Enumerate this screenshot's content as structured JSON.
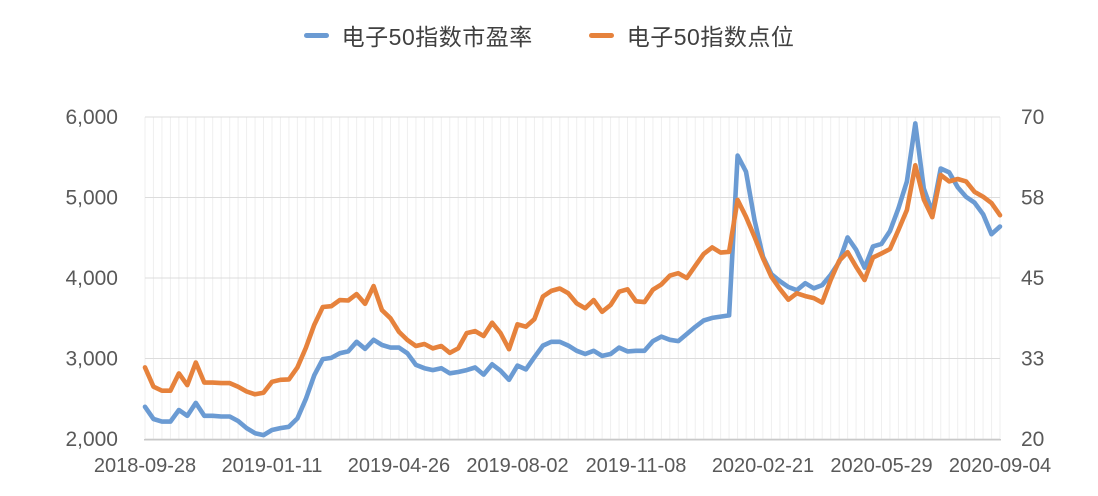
{
  "legend": {
    "items": [
      {
        "label": "电子50指数市盈率",
        "color": "#6B9BD3",
        "series": "pe"
      },
      {
        "label": "电子50指数点位",
        "color": "#E6823C",
        "series": "index"
      }
    ]
  },
  "colors": {
    "pe_line": "#6B9BD3",
    "index_line": "#E6823C",
    "axis_text": "#595959",
    "legend_text": "#404040",
    "h_gridline": "#DCDCDC",
    "v_gridline": "#EFEFEF",
    "axis_line": "#C8C8C8",
    "background": "#FFFFFF"
  },
  "chart_data": {
    "type": "line",
    "title": "",
    "legend_position": "top",
    "grid": true,
    "x_tick_labels": [
      "2018-09-28",
      "2019-01-11",
      "2019-04-26",
      "2019-08-02",
      "2019-11-08",
      "2020-02-21",
      "2020-05-29",
      "2020-09-04"
    ],
    "x_tick_indices": [
      0,
      15,
      30,
      44,
      58,
      73,
      87,
      101
    ],
    "y_left": {
      "label": "",
      "min": 2000,
      "max": 6000,
      "tick_labels": [
        "2,000",
        "3,000",
        "4,000",
        "5,000",
        "6,000"
      ],
      "tick_values": [
        2000,
        3000,
        4000,
        5000,
        6000
      ]
    },
    "y_right": {
      "label": "",
      "min": 20,
      "max": 70,
      "tick_labels": [
        "20",
        "33",
        "45",
        "58",
        "70"
      ],
      "tick_values": [
        20,
        32.5,
        45,
        57.5,
        70
      ]
    },
    "x": [
      "2018-09-28",
      "2018-10-05",
      "2018-10-12",
      "2018-10-19",
      "2018-10-26",
      "2018-11-02",
      "2018-11-09",
      "2018-11-16",
      "2018-11-23",
      "2018-11-30",
      "2018-12-07",
      "2018-12-14",
      "2018-12-21",
      "2018-12-28",
      "2019-01-04",
      "2019-01-11",
      "2019-01-18",
      "2019-01-25",
      "2019-02-01",
      "2019-02-08",
      "2019-02-15",
      "2019-02-22",
      "2019-03-01",
      "2019-03-08",
      "2019-03-15",
      "2019-03-22",
      "2019-03-29",
      "2019-04-05",
      "2019-04-12",
      "2019-04-19",
      "2019-04-26",
      "2019-05-03",
      "2019-05-10",
      "2019-05-17",
      "2019-05-24",
      "2019-05-31",
      "2019-06-07",
      "2019-06-14",
      "2019-06-21",
      "2019-06-28",
      "2019-07-05",
      "2019-07-12",
      "2019-07-19",
      "2019-07-26",
      "2019-08-02",
      "2019-08-09",
      "2019-08-16",
      "2019-08-23",
      "2019-08-30",
      "2019-09-06",
      "2019-09-13",
      "2019-09-20",
      "2019-09-27",
      "2019-10-04",
      "2019-10-11",
      "2019-10-18",
      "2019-10-25",
      "2019-11-01",
      "2019-11-08",
      "2019-11-15",
      "2019-11-22",
      "2019-11-29",
      "2019-12-06",
      "2019-12-13",
      "2019-12-20",
      "2019-12-27",
      "2020-01-03",
      "2020-01-10",
      "2020-01-17",
      "2020-01-24",
      "2020-01-31",
      "2020-02-07",
      "2020-02-14",
      "2020-02-21",
      "2020-02-28",
      "2020-03-06",
      "2020-03-13",
      "2020-03-20",
      "2020-03-27",
      "2020-04-03",
      "2020-04-10",
      "2020-04-17",
      "2020-04-24",
      "2020-05-01",
      "2020-05-08",
      "2020-05-15",
      "2020-05-22",
      "2020-05-29",
      "2020-06-05",
      "2020-06-12",
      "2020-06-19",
      "2020-06-26",
      "2020-07-03",
      "2020-07-10",
      "2020-07-17",
      "2020-07-24",
      "2020-07-31",
      "2020-08-07",
      "2020-08-14",
      "2020-08-21",
      "2020-08-28",
      "2020-09-04"
    ],
    "series": [
      {
        "name": "电子50指数市盈率",
        "axis": "right",
        "color": "#6B9BD3",
        "values": [
          25.0,
          23.1,
          22.7,
          22.7,
          24.5,
          23.6,
          25.6,
          23.6,
          23.6,
          23.5,
          23.5,
          22.8,
          21.7,
          20.9,
          20.6,
          21.4,
          21.7,
          21.9,
          23.2,
          26.2,
          29.9,
          32.4,
          32.6,
          33.3,
          33.6,
          35.1,
          34.0,
          35.4,
          34.6,
          34.2,
          34.2,
          33.3,
          31.5,
          31.0,
          30.7,
          31.0,
          30.2,
          30.4,
          30.7,
          31.1,
          30.0,
          31.6,
          30.6,
          29.2,
          31.4,
          30.8,
          32.7,
          34.5,
          35.1,
          35.1,
          34.5,
          33.7,
          33.2,
          33.7,
          32.9,
          33.2,
          34.2,
          33.6,
          33.7,
          33.7,
          35.2,
          35.9,
          35.4,
          35.2,
          36.3,
          37.4,
          38.4,
          38.8,
          39.0,
          39.2,
          64.0,
          61.5,
          54.0,
          48.3,
          45.6,
          44.5,
          43.6,
          43.1,
          44.2,
          43.4,
          43.9,
          45.5,
          47.5,
          51.3,
          49.4,
          46.6,
          49.9,
          50.3,
          52.3,
          55.8,
          60.0,
          69.0,
          58.9,
          55.2,
          62.0,
          61.4,
          59.1,
          57.6,
          56.7,
          54.9,
          51.8,
          53.0
        ]
      },
      {
        "name": "电子50指数点位",
        "axis": "left",
        "color": "#E6823C",
        "values": [
          2890,
          2650,
          2600,
          2600,
          2815,
          2670,
          2950,
          2700,
          2700,
          2695,
          2695,
          2650,
          2590,
          2555,
          2575,
          2710,
          2735,
          2740,
          2890,
          3130,
          3420,
          3640,
          3650,
          3725,
          3720,
          3800,
          3680,
          3900,
          3600,
          3500,
          3330,
          3230,
          3155,
          3180,
          3125,
          3155,
          3070,
          3125,
          3315,
          3340,
          3280,
          3445,
          3315,
          3115,
          3425,
          3395,
          3490,
          3770,
          3840,
          3870,
          3810,
          3685,
          3625,
          3725,
          3580,
          3665,
          3830,
          3860,
          3710,
          3700,
          3855,
          3920,
          4030,
          4060,
          4000,
          4150,
          4300,
          4380,
          4315,
          4325,
          4970,
          4760,
          4510,
          4245,
          4015,
          3865,
          3730,
          3810,
          3775,
          3750,
          3695,
          3975,
          4215,
          4320,
          4140,
          3975,
          4255,
          4305,
          4360,
          4595,
          4845,
          5400,
          4975,
          4755,
          5280,
          5200,
          5230,
          5200,
          5070,
          5010,
          4930,
          4780
        ]
      }
    ]
  }
}
